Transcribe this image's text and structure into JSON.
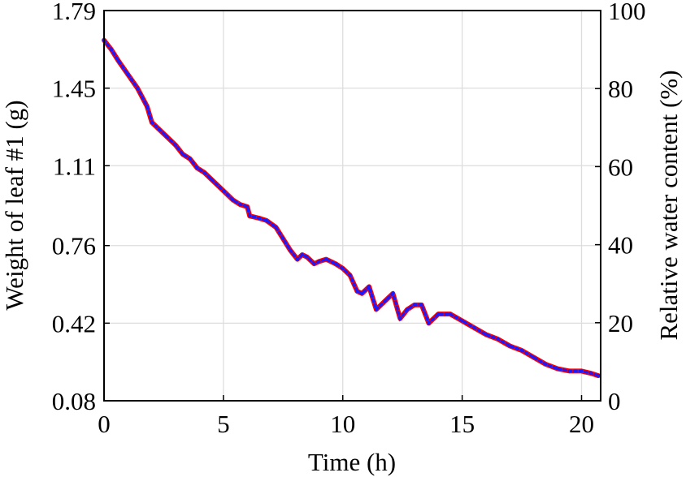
{
  "chart_data": {
    "type": "line",
    "xlabel": "Time (h)",
    "ylabel_left": "Weight of leaf #1 (g)",
    "ylabel_right": "Relative water content (%)",
    "xlim": [
      0,
      20.8
    ],
    "ylim_left": [
      0.08,
      1.79
    ],
    "ylim_right": [
      0,
      100
    ],
    "x_ticks": [
      "0",
      "5",
      "10",
      "15",
      "20"
    ],
    "y_left_ticks": [
      "0.08",
      "0.42",
      "0.76",
      "1.11",
      "1.45",
      "1.79"
    ],
    "y_right_ticks": [
      "0",
      "20",
      "40",
      "60",
      "80",
      "100"
    ],
    "grid": true,
    "series": [
      {
        "color": "#ff0000",
        "marker_color": "#1a1aff",
        "x": [
          0,
          0.3,
          0.6,
          1.0,
          1.4,
          1.8,
          2.0,
          2.3,
          2.6,
          3.0,
          3.3,
          3.6,
          3.9,
          4.2,
          4.5,
          5.0,
          5.4,
          5.7,
          6.0,
          6.1,
          6.5,
          6.8,
          7.2,
          7.5,
          7.8,
          8.1,
          8.3,
          8.5,
          8.8,
          9.0,
          9.3,
          9.7,
          10.0,
          10.3,
          10.6,
          10.8,
          11.1,
          11.4,
          11.8,
          12.1,
          12.4,
          12.7,
          13.0,
          13.3,
          13.6,
          14.0,
          14.5,
          15.0,
          15.5,
          16.0,
          16.5,
          17.0,
          17.5,
          18.0,
          18.5,
          19.0,
          19.5,
          20.0,
          20.4,
          20.7
        ],
        "y": [
          1.66,
          1.62,
          1.57,
          1.51,
          1.45,
          1.37,
          1.3,
          1.27,
          1.24,
          1.2,
          1.16,
          1.14,
          1.1,
          1.08,
          1.05,
          1.0,
          0.96,
          0.94,
          0.93,
          0.89,
          0.88,
          0.87,
          0.84,
          0.79,
          0.74,
          0.7,
          0.72,
          0.71,
          0.68,
          0.69,
          0.7,
          0.68,
          0.66,
          0.63,
          0.56,
          0.55,
          0.58,
          0.48,
          0.52,
          0.55,
          0.44,
          0.48,
          0.5,
          0.5,
          0.42,
          0.46,
          0.46,
          0.43,
          0.4,
          0.37,
          0.35,
          0.32,
          0.3,
          0.27,
          0.24,
          0.22,
          0.21,
          0.21,
          0.2,
          0.19
        ]
      }
    ]
  }
}
